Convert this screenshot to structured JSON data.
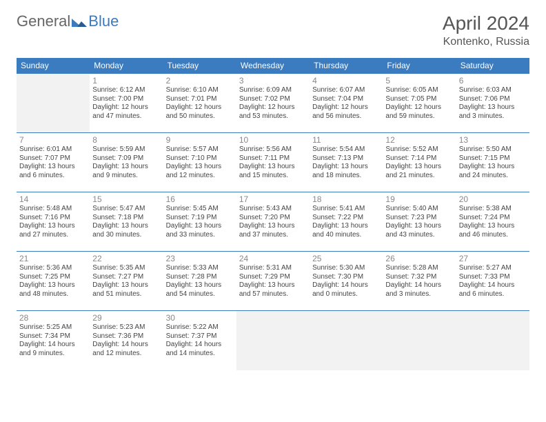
{
  "brand": {
    "part1": "General",
    "part2": "Blue"
  },
  "title": "April 2024",
  "location": "Kontenko, Russia",
  "colors": {
    "header_bg": "#3b7bbf",
    "header_text": "#ffffff",
    "border": "#3b7bbf",
    "empty_bg": "#f2f2f2",
    "text": "#444444",
    "daynum": "#888888"
  },
  "dayNames": [
    "Sunday",
    "Monday",
    "Tuesday",
    "Wednesday",
    "Thursday",
    "Friday",
    "Saturday"
  ],
  "weeks": [
    [
      null,
      {
        "n": "1",
        "sr": "Sunrise: 6:12 AM",
        "ss": "Sunset: 7:00 PM",
        "dl": "Daylight: 12 hours and 47 minutes."
      },
      {
        "n": "2",
        "sr": "Sunrise: 6:10 AM",
        "ss": "Sunset: 7:01 PM",
        "dl": "Daylight: 12 hours and 50 minutes."
      },
      {
        "n": "3",
        "sr": "Sunrise: 6:09 AM",
        "ss": "Sunset: 7:02 PM",
        "dl": "Daylight: 12 hours and 53 minutes."
      },
      {
        "n": "4",
        "sr": "Sunrise: 6:07 AM",
        "ss": "Sunset: 7:04 PM",
        "dl": "Daylight: 12 hours and 56 minutes."
      },
      {
        "n": "5",
        "sr": "Sunrise: 6:05 AM",
        "ss": "Sunset: 7:05 PM",
        "dl": "Daylight: 12 hours and 59 minutes."
      },
      {
        "n": "6",
        "sr": "Sunrise: 6:03 AM",
        "ss": "Sunset: 7:06 PM",
        "dl": "Daylight: 13 hours and 3 minutes."
      }
    ],
    [
      {
        "n": "7",
        "sr": "Sunrise: 6:01 AM",
        "ss": "Sunset: 7:07 PM",
        "dl": "Daylight: 13 hours and 6 minutes."
      },
      {
        "n": "8",
        "sr": "Sunrise: 5:59 AM",
        "ss": "Sunset: 7:09 PM",
        "dl": "Daylight: 13 hours and 9 minutes."
      },
      {
        "n": "9",
        "sr": "Sunrise: 5:57 AM",
        "ss": "Sunset: 7:10 PM",
        "dl": "Daylight: 13 hours and 12 minutes."
      },
      {
        "n": "10",
        "sr": "Sunrise: 5:56 AM",
        "ss": "Sunset: 7:11 PM",
        "dl": "Daylight: 13 hours and 15 minutes."
      },
      {
        "n": "11",
        "sr": "Sunrise: 5:54 AM",
        "ss": "Sunset: 7:13 PM",
        "dl": "Daylight: 13 hours and 18 minutes."
      },
      {
        "n": "12",
        "sr": "Sunrise: 5:52 AM",
        "ss": "Sunset: 7:14 PM",
        "dl": "Daylight: 13 hours and 21 minutes."
      },
      {
        "n": "13",
        "sr": "Sunrise: 5:50 AM",
        "ss": "Sunset: 7:15 PM",
        "dl": "Daylight: 13 hours and 24 minutes."
      }
    ],
    [
      {
        "n": "14",
        "sr": "Sunrise: 5:48 AM",
        "ss": "Sunset: 7:16 PM",
        "dl": "Daylight: 13 hours and 27 minutes."
      },
      {
        "n": "15",
        "sr": "Sunrise: 5:47 AM",
        "ss": "Sunset: 7:18 PM",
        "dl": "Daylight: 13 hours and 30 minutes."
      },
      {
        "n": "16",
        "sr": "Sunrise: 5:45 AM",
        "ss": "Sunset: 7:19 PM",
        "dl": "Daylight: 13 hours and 33 minutes."
      },
      {
        "n": "17",
        "sr": "Sunrise: 5:43 AM",
        "ss": "Sunset: 7:20 PM",
        "dl": "Daylight: 13 hours and 37 minutes."
      },
      {
        "n": "18",
        "sr": "Sunrise: 5:41 AM",
        "ss": "Sunset: 7:22 PM",
        "dl": "Daylight: 13 hours and 40 minutes."
      },
      {
        "n": "19",
        "sr": "Sunrise: 5:40 AM",
        "ss": "Sunset: 7:23 PM",
        "dl": "Daylight: 13 hours and 43 minutes."
      },
      {
        "n": "20",
        "sr": "Sunrise: 5:38 AM",
        "ss": "Sunset: 7:24 PM",
        "dl": "Daylight: 13 hours and 46 minutes."
      }
    ],
    [
      {
        "n": "21",
        "sr": "Sunrise: 5:36 AM",
        "ss": "Sunset: 7:25 PM",
        "dl": "Daylight: 13 hours and 48 minutes."
      },
      {
        "n": "22",
        "sr": "Sunrise: 5:35 AM",
        "ss": "Sunset: 7:27 PM",
        "dl": "Daylight: 13 hours and 51 minutes."
      },
      {
        "n": "23",
        "sr": "Sunrise: 5:33 AM",
        "ss": "Sunset: 7:28 PM",
        "dl": "Daylight: 13 hours and 54 minutes."
      },
      {
        "n": "24",
        "sr": "Sunrise: 5:31 AM",
        "ss": "Sunset: 7:29 PM",
        "dl": "Daylight: 13 hours and 57 minutes."
      },
      {
        "n": "25",
        "sr": "Sunrise: 5:30 AM",
        "ss": "Sunset: 7:30 PM",
        "dl": "Daylight: 14 hours and 0 minutes."
      },
      {
        "n": "26",
        "sr": "Sunrise: 5:28 AM",
        "ss": "Sunset: 7:32 PM",
        "dl": "Daylight: 14 hours and 3 minutes."
      },
      {
        "n": "27",
        "sr": "Sunrise: 5:27 AM",
        "ss": "Sunset: 7:33 PM",
        "dl": "Daylight: 14 hours and 6 minutes."
      }
    ],
    [
      {
        "n": "28",
        "sr": "Sunrise: 5:25 AM",
        "ss": "Sunset: 7:34 PM",
        "dl": "Daylight: 14 hours and 9 minutes."
      },
      {
        "n": "29",
        "sr": "Sunrise: 5:23 AM",
        "ss": "Sunset: 7:36 PM",
        "dl": "Daylight: 14 hours and 12 minutes."
      },
      {
        "n": "30",
        "sr": "Sunrise: 5:22 AM",
        "ss": "Sunset: 7:37 PM",
        "dl": "Daylight: 14 hours and 14 minutes."
      },
      null,
      null,
      null,
      null
    ]
  ]
}
